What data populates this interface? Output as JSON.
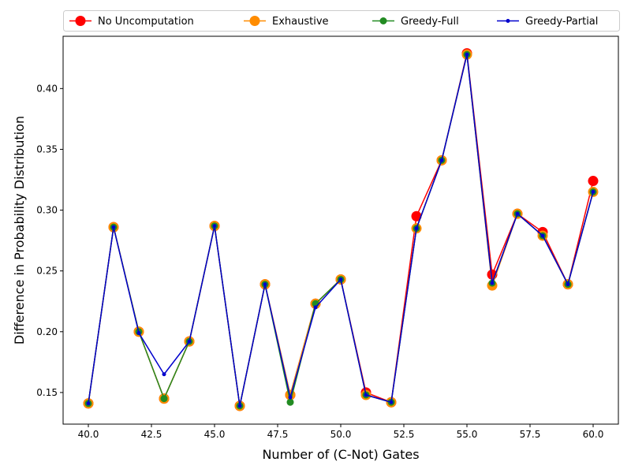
{
  "chart_data": {
    "type": "line",
    "title": "",
    "xlabel": "Number of (C-Not) Gates",
    "ylabel": "Difference in Probability Distribution",
    "xlim": [
      39.0,
      61.0
    ],
    "ylim": [
      0.124,
      0.443
    ],
    "xticks": [
      40.0,
      42.5,
      45.0,
      47.5,
      50.0,
      52.5,
      55.0,
      57.5,
      60.0
    ],
    "xtick_labels": [
      "40.0",
      "42.5",
      "45.0",
      "47.5",
      "50.0",
      "52.5",
      "55.0",
      "57.5",
      "60.0"
    ],
    "yticks": [
      0.15,
      0.2,
      0.25,
      0.3,
      0.35,
      0.4
    ],
    "ytick_labels": [
      "0.15",
      "0.20",
      "0.25",
      "0.30",
      "0.35",
      "0.40"
    ],
    "grid": false,
    "legend_position": "top",
    "x": [
      40,
      41,
      42,
      43,
      44,
      45,
      46,
      47,
      48,
      49,
      50,
      51,
      52,
      53,
      54,
      55,
      56,
      57,
      58,
      59,
      60
    ],
    "series": [
      {
        "name": "No Uncomputation",
        "color": "#ff0000",
        "marker_size": 13,
        "line_width": 1.5,
        "values": [
          0.141,
          0.286,
          0.2,
          0.145,
          0.192,
          0.287,
          0.139,
          0.239,
          0.148,
          0.223,
          0.243,
          0.15,
          0.142,
          0.295,
          0.341,
          0.429,
          0.247,
          0.297,
          0.282,
          0.239,
          0.324
        ]
      },
      {
        "name": "Exhaustive",
        "color": "#ff8c00",
        "marker_size": 13,
        "line_width": 1.5,
        "values": [
          0.141,
          0.286,
          0.2,
          0.145,
          0.192,
          0.287,
          0.139,
          0.239,
          0.148,
          0.223,
          0.243,
          0.148,
          0.142,
          0.285,
          0.341,
          0.428,
          0.238,
          0.297,
          0.279,
          0.239,
          0.315
        ]
      },
      {
        "name": "Greedy-Full",
        "color": "#228b22",
        "marker_size": 9,
        "line_width": 1.5,
        "values": [
          0.141,
          0.286,
          0.2,
          0.145,
          0.192,
          0.287,
          0.139,
          0.239,
          0.142,
          0.223,
          0.243,
          0.148,
          0.142,
          0.285,
          0.341,
          0.428,
          0.24,
          0.297,
          0.279,
          0.239,
          0.315
        ]
      },
      {
        "name": "Greedy-Partial",
        "color": "#0000cd",
        "marker_size": 5,
        "line_width": 1.5,
        "values": [
          0.141,
          0.286,
          0.199,
          0.165,
          0.192,
          0.287,
          0.139,
          0.239,
          0.146,
          0.22,
          0.243,
          0.148,
          0.142,
          0.285,
          0.341,
          0.428,
          0.24,
          0.297,
          0.279,
          0.239,
          0.315
        ]
      }
    ]
  }
}
